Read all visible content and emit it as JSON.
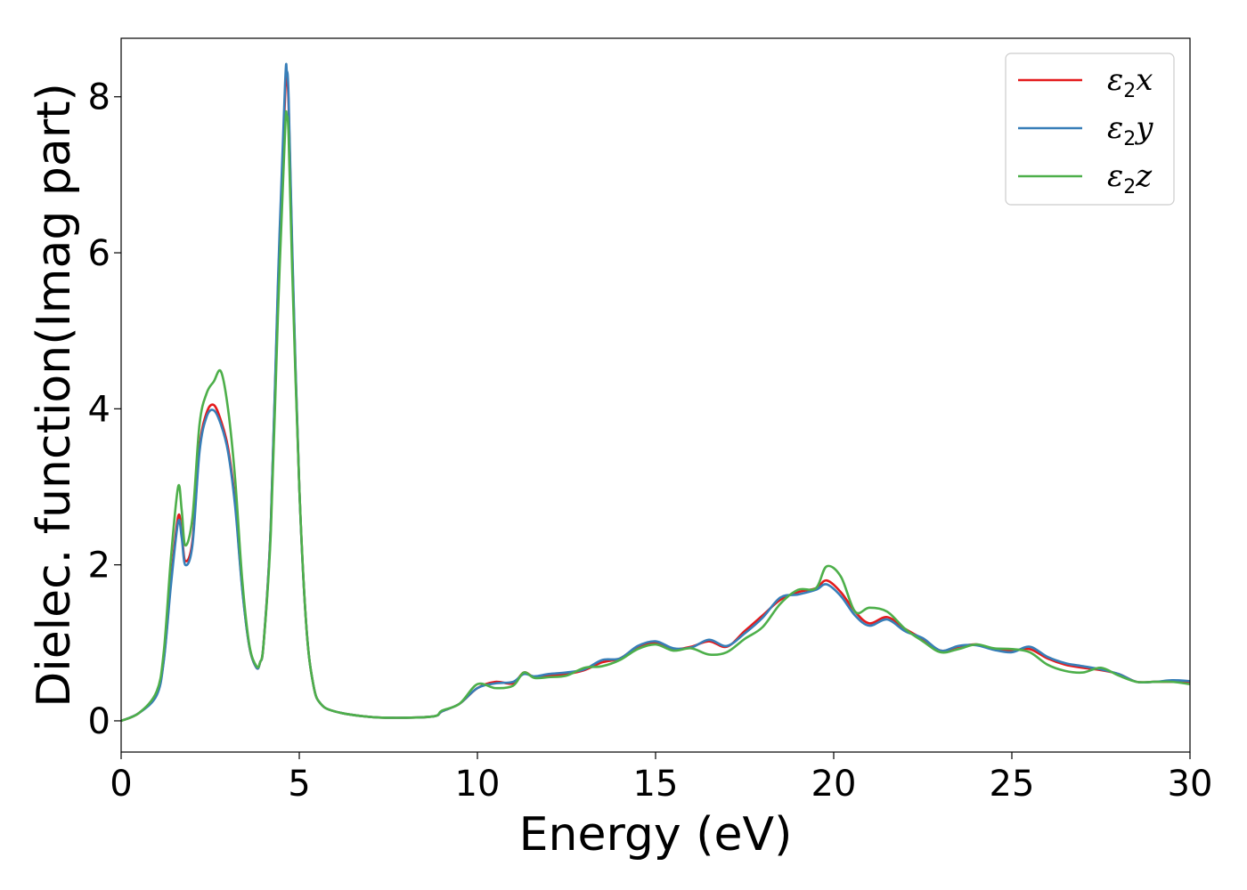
{
  "chart_data": {
    "type": "line",
    "title": "",
    "xlabel": "Energy (eV)",
    "ylabel": "Dielec. function(Imag part)",
    "xlim": [
      0,
      30
    ],
    "ylim": [
      -0.4,
      8.75
    ],
    "xticks": [
      0,
      5,
      10,
      15,
      20,
      25,
      30
    ],
    "yticks": [
      0,
      2,
      4,
      6,
      8
    ],
    "grid": false,
    "legend_position": "top-right",
    "series": [
      {
        "name": "ε2x",
        "legend_base": "ε",
        "legend_sub": "2",
        "legend_var": "x",
        "color": "#e41a1c",
        "x": [
          0,
          0.5,
          1.0,
          1.2,
          1.4,
          1.6,
          1.7,
          1.8,
          2.0,
          2.2,
          2.4,
          2.6,
          2.8,
          3.0,
          3.2,
          3.4,
          3.6,
          3.8,
          3.9,
          4.0,
          4.2,
          4.4,
          4.6,
          4.65,
          4.7,
          4.8,
          5.0,
          5.2,
          5.4,
          5.6,
          6.0,
          7.0,
          8.0,
          8.8,
          9.0,
          9.5,
          10.0,
          10.5,
          11.0,
          11.3,
          11.6,
          12.0,
          12.5,
          13.0,
          13.5,
          14.0,
          14.5,
          15.0,
          15.5,
          16.0,
          16.5,
          17.0,
          17.5,
          18.0,
          18.5,
          19.0,
          19.5,
          19.8,
          20.2,
          20.6,
          21.0,
          21.5,
          22.0,
          22.5,
          23.0,
          23.5,
          24.0,
          24.5,
          25.0,
          25.5,
          26.0,
          26.5,
          27.0,
          27.5,
          28.0,
          28.5,
          29.0,
          29.5,
          30.0
        ],
        "y": [
          0,
          0.1,
          0.35,
          0.8,
          1.8,
          2.62,
          2.4,
          2.05,
          2.3,
          3.5,
          3.95,
          4.05,
          3.85,
          3.5,
          2.8,
          1.7,
          0.95,
          0.68,
          0.75,
          1.0,
          2.5,
          5.5,
          8.0,
          8.2,
          7.9,
          6.0,
          3.0,
          1.2,
          0.45,
          0.22,
          0.12,
          0.05,
          0.04,
          0.06,
          0.12,
          0.22,
          0.42,
          0.5,
          0.48,
          0.62,
          0.56,
          0.58,
          0.6,
          0.65,
          0.75,
          0.8,
          0.95,
          1.0,
          0.92,
          0.95,
          1.02,
          0.95,
          1.15,
          1.35,
          1.55,
          1.65,
          1.7,
          1.8,
          1.65,
          1.4,
          1.25,
          1.33,
          1.18,
          1.05,
          0.9,
          0.95,
          0.98,
          0.92,
          0.9,
          0.92,
          0.8,
          0.72,
          0.68,
          0.65,
          0.6,
          0.5,
          0.5,
          0.5,
          0.5
        ]
      },
      {
        "name": "ε2y",
        "legend_base": "ε",
        "legend_sub": "2",
        "legend_var": "y",
        "color": "#377eb8",
        "x": [
          0,
          0.5,
          1.0,
          1.2,
          1.4,
          1.6,
          1.7,
          1.8,
          2.0,
          2.2,
          2.4,
          2.6,
          2.8,
          3.0,
          3.2,
          3.4,
          3.6,
          3.8,
          3.9,
          4.0,
          4.2,
          4.4,
          4.6,
          4.65,
          4.7,
          4.8,
          5.0,
          5.2,
          5.4,
          5.6,
          6.0,
          7.0,
          8.0,
          8.8,
          9.0,
          9.5,
          10.0,
          10.5,
          11.0,
          11.3,
          11.6,
          12.0,
          12.5,
          13.0,
          13.5,
          14.0,
          14.5,
          15.0,
          15.5,
          16.0,
          16.5,
          17.0,
          17.5,
          18.0,
          18.5,
          19.0,
          19.5,
          19.8,
          20.2,
          20.6,
          21.0,
          21.5,
          22.0,
          22.5,
          23.0,
          23.5,
          24.0,
          24.5,
          25.0,
          25.5,
          26.0,
          26.5,
          27.0,
          27.5,
          28.0,
          28.5,
          29.0,
          29.5,
          30.0
        ],
        "y": [
          0,
          0.1,
          0.33,
          0.78,
          1.75,
          2.55,
          2.35,
          2.0,
          2.25,
          3.45,
          3.9,
          3.98,
          3.8,
          3.45,
          2.75,
          1.68,
          0.95,
          0.68,
          0.75,
          1.0,
          2.5,
          5.6,
          8.15,
          8.33,
          8.0,
          6.1,
          3.0,
          1.2,
          0.45,
          0.22,
          0.12,
          0.05,
          0.04,
          0.06,
          0.12,
          0.22,
          0.42,
          0.48,
          0.5,
          0.6,
          0.57,
          0.6,
          0.62,
          0.66,
          0.78,
          0.8,
          0.96,
          1.02,
          0.93,
          0.94,
          1.04,
          0.96,
          1.12,
          1.32,
          1.58,
          1.62,
          1.68,
          1.75,
          1.6,
          1.35,
          1.22,
          1.3,
          1.15,
          1.06,
          0.9,
          0.96,
          0.97,
          0.91,
          0.88,
          0.95,
          0.82,
          0.74,
          0.7,
          0.66,
          0.6,
          0.5,
          0.5,
          0.52,
          0.51
        ]
      },
      {
        "name": "ε2z",
        "legend_base": "ε",
        "legend_sub": "2",
        "legend_var": "z",
        "color": "#4daf4a",
        "x": [
          0,
          0.5,
          1.0,
          1.2,
          1.4,
          1.6,
          1.7,
          1.8,
          2.0,
          2.2,
          2.4,
          2.6,
          2.8,
          3.0,
          3.2,
          3.4,
          3.6,
          3.8,
          3.9,
          4.0,
          4.2,
          4.4,
          4.6,
          4.65,
          4.7,
          4.8,
          5.0,
          5.2,
          5.4,
          5.6,
          6.0,
          7.0,
          8.0,
          8.8,
          9.0,
          9.5,
          10.0,
          10.5,
          11.0,
          11.3,
          11.6,
          12.0,
          12.5,
          13.0,
          13.5,
          14.0,
          14.5,
          15.0,
          15.5,
          16.0,
          16.5,
          17.0,
          17.5,
          18.0,
          18.5,
          19.0,
          19.5,
          19.8,
          20.2,
          20.6,
          21.0,
          21.5,
          22.0,
          22.5,
          23.0,
          23.5,
          24.0,
          24.5,
          25.0,
          25.5,
          26.0,
          26.5,
          27.0,
          27.5,
          28.0,
          28.5,
          29.0,
          29.5,
          30.0
        ],
        "y": [
          0,
          0.1,
          0.38,
          0.9,
          2.1,
          3.0,
          2.7,
          2.25,
          2.6,
          3.8,
          4.2,
          4.35,
          4.48,
          4.0,
          3.1,
          1.8,
          0.97,
          0.7,
          0.75,
          1.0,
          2.4,
          5.2,
          7.55,
          7.75,
          7.5,
          5.8,
          3.0,
          1.2,
          0.45,
          0.22,
          0.12,
          0.05,
          0.04,
          0.06,
          0.13,
          0.22,
          0.47,
          0.42,
          0.45,
          0.62,
          0.55,
          0.56,
          0.58,
          0.68,
          0.7,
          0.78,
          0.92,
          0.98,
          0.9,
          0.93,
          0.85,
          0.88,
          1.05,
          1.2,
          1.5,
          1.68,
          1.7,
          1.98,
          1.85,
          1.4,
          1.45,
          1.4,
          1.18,
          1.02,
          0.88,
          0.92,
          0.98,
          0.93,
          0.92,
          0.88,
          0.72,
          0.64,
          0.62,
          0.68,
          0.58,
          0.5,
          0.5,
          0.5,
          0.47
        ]
      }
    ]
  }
}
